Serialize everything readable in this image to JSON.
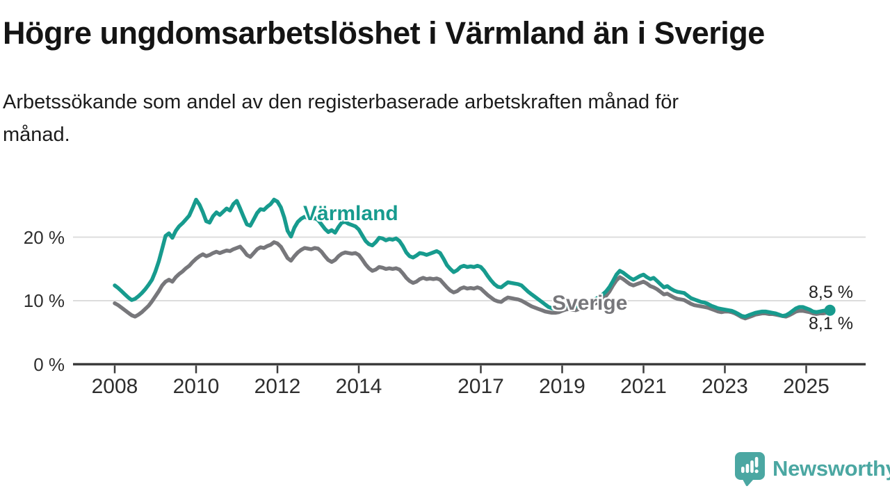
{
  "header": {
    "title": "Högre ungdomsarbetslöshet i Värmland än i Sverige",
    "subtitle": "Arbetssökande som andel av den registerbaserade arbetskraften månad för\nmånad."
  },
  "footer": {
    "brand": "Newsworthy"
  },
  "colors": {
    "varmland": "#179b8e",
    "sverige": "#77777b",
    "gridline": "#dcdcdc",
    "axis": "#3c3c3c",
    "value_label": "#222222",
    "brand_teal": "#4ba7a2"
  },
  "chart_data": {
    "type": "line",
    "unit": "%",
    "x_axis": {
      "ticks": [
        2008,
        2010,
        2012,
        2014,
        2017,
        2019,
        2021,
        2023,
        2025
      ],
      "range": [
        2008,
        2025.58
      ]
    },
    "y_axis": {
      "ticks": [
        {
          "value": 0,
          "label": "0 %"
        },
        {
          "value": 10,
          "label": "10 %"
        },
        {
          "value": 20,
          "label": "20 %"
        }
      ],
      "range": [
        0,
        28
      ]
    },
    "grid": "horizontal-only",
    "legend_position": "inline-labels",
    "series": [
      {
        "name": "Värmland",
        "color": "#179b8e",
        "end_label": "8,5 %",
        "end_value": 8.5,
        "start_year": 2008,
        "start_month": 1,
        "values": [
          12.4,
          12.0,
          11.5,
          11.0,
          10.5,
          10.1,
          10.3,
          10.7,
          11.2,
          11.8,
          12.5,
          13.3,
          14.6,
          16.2,
          18.2,
          20.2,
          20.6,
          19.9,
          21.0,
          21.7,
          22.2,
          22.8,
          23.4,
          24.6,
          25.9,
          25.1,
          23.9,
          22.5,
          22.3,
          23.3,
          23.9,
          23.5,
          24.0,
          24.5,
          24.2,
          25.2,
          25.7,
          24.5,
          23.2,
          22.0,
          21.8,
          22.8,
          23.8,
          24.4,
          24.3,
          24.8,
          25.2,
          25.9,
          25.6,
          24.7,
          23.1,
          21.0,
          20.1,
          21.5,
          22.4,
          22.9,
          23.2,
          23.0,
          22.8,
          23.0,
          22.7,
          22.0,
          21.3,
          20.8,
          21.1,
          20.7,
          21.6,
          22.3,
          22.4,
          22.1,
          21.9,
          21.7,
          21.2,
          20.3,
          19.4,
          18.9,
          18.7,
          19.2,
          19.9,
          19.8,
          19.5,
          19.7,
          19.6,
          19.8,
          19.4,
          18.6,
          17.6,
          17.0,
          16.8,
          17.1,
          17.5,
          17.4,
          17.2,
          17.4,
          17.6,
          17.8,
          17.5,
          16.6,
          15.6,
          15.0,
          14.5,
          14.8,
          15.3,
          15.5,
          15.3,
          15.4,
          15.3,
          15.5,
          15.3,
          14.7,
          13.9,
          13.2,
          12.6,
          12.2,
          12.1,
          12.5,
          12.9,
          12.8,
          12.7,
          12.6,
          12.4,
          11.9,
          11.4,
          11.0,
          10.6,
          10.2,
          9.8,
          9.4,
          9.0,
          8.8,
          8.7,
          8.8,
          9.0,
          9.2,
          9.3,
          9.2,
          9.1,
          9.3,
          9.5,
          9.7,
          9.9,
          10.1,
          10.3,
          10.6,
          11.0,
          11.5,
          12.2,
          13.1,
          14.1,
          14.7,
          14.4,
          14.0,
          13.6,
          13.3,
          13.6,
          13.9,
          14.1,
          13.7,
          13.4,
          13.6,
          13.1,
          12.6,
          12.1,
          12.3,
          11.9,
          11.6,
          11.4,
          11.3,
          11.2,
          10.8,
          10.4,
          10.2,
          10.0,
          9.8,
          9.7,
          9.5,
          9.2,
          9.0,
          8.8,
          8.7,
          8.6,
          8.5,
          8.4,
          8.2,
          7.9,
          7.6,
          7.5,
          7.7,
          7.9,
          8.1,
          8.2,
          8.3,
          8.3,
          8.2,
          8.1,
          8.0,
          7.8,
          7.6,
          7.7,
          8.0,
          8.4,
          8.8,
          9.0,
          9.0,
          8.8,
          8.6,
          8.3,
          8.2,
          8.3,
          8.4,
          8.5,
          8.5
        ]
      },
      {
        "name": "Sverige",
        "color": "#77777b",
        "end_label": "8,1 %",
        "end_value": 8.1,
        "start_year": 2008,
        "start_month": 1,
        "values": [
          9.6,
          9.3,
          8.9,
          8.5,
          8.1,
          7.7,
          7.5,
          7.8,
          8.2,
          8.7,
          9.2,
          9.9,
          10.7,
          11.5,
          12.4,
          13.0,
          13.3,
          13.0,
          13.7,
          14.2,
          14.6,
          15.1,
          15.5,
          16.1,
          16.6,
          17.0,
          17.3,
          17.0,
          17.2,
          17.5,
          17.7,
          17.5,
          17.7,
          17.9,
          17.8,
          18.1,
          18.3,
          18.5,
          17.9,
          17.2,
          16.9,
          17.5,
          18.1,
          18.4,
          18.3,
          18.6,
          18.8,
          19.2,
          19.0,
          18.5,
          17.6,
          16.7,
          16.3,
          17.0,
          17.6,
          18.0,
          18.3,
          18.2,
          18.1,
          18.3,
          18.2,
          17.7,
          17.0,
          16.4,
          16.1,
          16.4,
          17.0,
          17.4,
          17.6,
          17.5,
          17.4,
          17.5,
          17.2,
          16.5,
          15.7,
          15.1,
          14.7,
          14.9,
          15.3,
          15.2,
          15.0,
          15.1,
          15.0,
          15.1,
          14.9,
          14.3,
          13.6,
          13.1,
          12.8,
          13.0,
          13.4,
          13.6,
          13.4,
          13.5,
          13.4,
          13.5,
          13.3,
          12.7,
          12.1,
          11.6,
          11.3,
          11.5,
          11.9,
          12.1,
          11.9,
          12.0,
          11.9,
          12.1,
          11.9,
          11.4,
          10.9,
          10.5,
          10.1,
          9.9,
          9.8,
          10.2,
          10.5,
          10.4,
          10.3,
          10.2,
          10.0,
          9.7,
          9.4,
          9.1,
          8.9,
          8.7,
          8.5,
          8.3,
          8.2,
          8.1,
          8.1,
          8.2,
          8.4,
          8.6,
          8.7,
          8.6,
          8.5,
          8.7,
          8.9,
          9.1,
          9.3,
          9.5,
          9.6,
          9.9,
          10.3,
          10.8,
          11.5,
          12.4,
          13.2,
          13.7,
          13.4,
          13.0,
          12.6,
          12.4,
          12.6,
          12.8,
          13.0,
          12.7,
          12.3,
          12.1,
          11.8,
          11.4,
          11.0,
          11.1,
          10.8,
          10.5,
          10.3,
          10.2,
          10.1,
          9.8,
          9.5,
          9.3,
          9.2,
          9.1,
          9.0,
          8.9,
          8.7,
          8.5,
          8.3,
          8.2,
          8.3,
          8.3,
          8.2,
          8.0,
          7.7,
          7.4,
          7.2,
          7.4,
          7.6,
          7.8,
          7.9,
          8.0,
          8.0,
          7.9,
          7.9,
          7.8,
          7.7,
          7.6,
          7.5,
          7.7,
          8.0,
          8.3,
          8.4,
          8.4,
          8.3,
          8.2,
          8.0,
          7.9,
          8.0,
          8.0,
          8.1,
          8.1
        ]
      }
    ]
  }
}
